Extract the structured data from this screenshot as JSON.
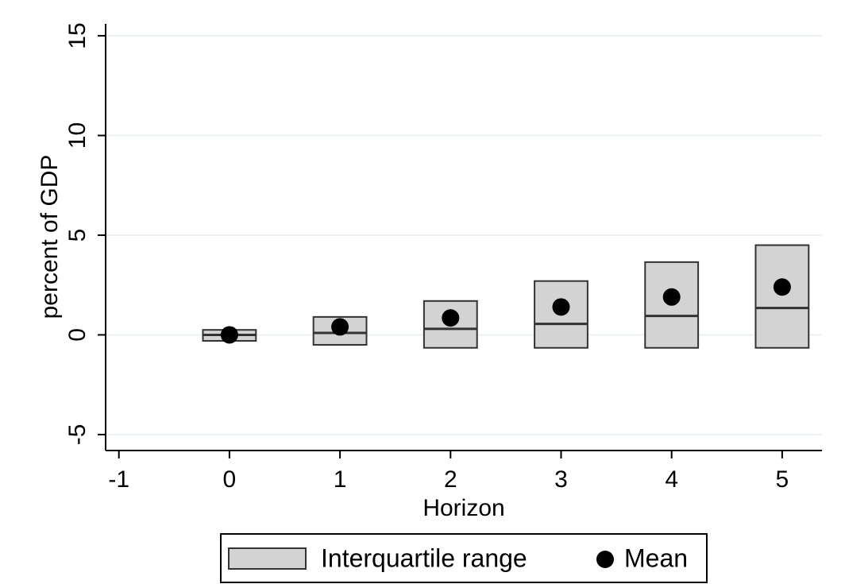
{
  "chart_data": {
    "type": "box",
    "x_label": "Horizon",
    "y_label": "percent of GDP",
    "x": [
      0,
      1,
      2,
      3,
      4,
      5
    ],
    "series": [
      {
        "name": "Interquartile range",
        "color": "#d3d3d3",
        "q1": [
          -0.3,
          -0.5,
          -0.65,
          -0.65,
          -0.65,
          -0.65
        ],
        "median": [
          0,
          0.1,
          0.3,
          0.55,
          0.95,
          1.35
        ],
        "q3": [
          0.25,
          0.9,
          1.7,
          2.7,
          3.65,
          4.5
        ]
      },
      {
        "name": "Mean",
        "color": "#000000",
        "values": [
          0,
          0.4,
          0.85,
          1.4,
          1.9,
          2.4
        ]
      }
    ],
    "xlim": [
      -1.12,
      5.36
    ],
    "ylim": [
      -5.8,
      15.6
    ],
    "xticks": [
      -1,
      0,
      1,
      2,
      3,
      4,
      5
    ],
    "yticks": [
      -5,
      0,
      5,
      10,
      15
    ],
    "grid": true,
    "legend": "bottom"
  }
}
